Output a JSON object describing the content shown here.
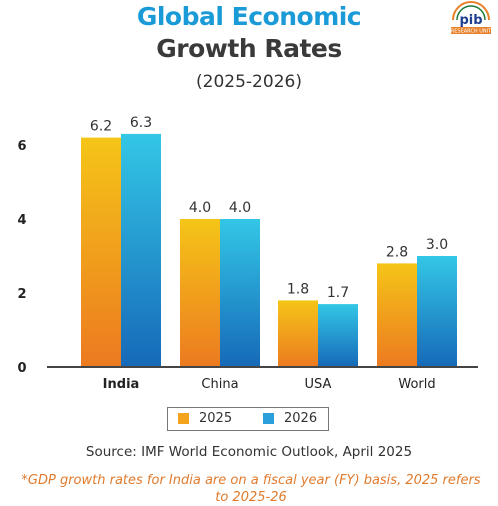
{
  "header": {
    "title_line1": "Global Economic",
    "title_line2": "Growth Rates",
    "subtitle": "(2025-2026)",
    "logo_text": "pib",
    "logo_subtext": "RESEARCH UNIT"
  },
  "legend": {
    "items": [
      "2025",
      "2026"
    ]
  },
  "source": "Source: IMF World Economic Outlook, April 2025",
  "footnote": "*GDP growth rates for India are on a fiscal year (FY) basis, 2025 refers to 2025-26",
  "colors": {
    "series_2025_top": "#f5c518",
    "series_2025_bottom": "#ec7a20",
    "series_2026_top": "#33c7e6",
    "series_2026_bottom": "#1669b8",
    "legend_2025": "#f3a31c",
    "legend_2026": "#2a9fd9",
    "title_blue": "#1a9bd7",
    "footnote_orange": "#e07b2e"
  },
  "chart_data": {
    "type": "bar",
    "categories": [
      "India",
      "China",
      "USA",
      "World"
    ],
    "bold_categories": [
      "India"
    ],
    "series": [
      {
        "name": "2025",
        "values": [
          6.2,
          4.0,
          1.8,
          2.8
        ],
        "labels": [
          "6.2",
          "4.0",
          "1.8",
          "2.8"
        ]
      },
      {
        "name": "2026",
        "values": [
          6.3,
          4.0,
          1.7,
          3.0
        ],
        "labels": [
          "6.3",
          "4.0",
          "1.7",
          "3.0"
        ]
      }
    ],
    "yticks": [
      0,
      2,
      4,
      6
    ],
    "ylim": [
      0,
      7
    ],
    "title": "Global Economic Growth Rates",
    "subtitle": "(2025-2026)",
    "xlabel": "",
    "ylabel": "",
    "grid": false,
    "legend_position": "bottom"
  }
}
